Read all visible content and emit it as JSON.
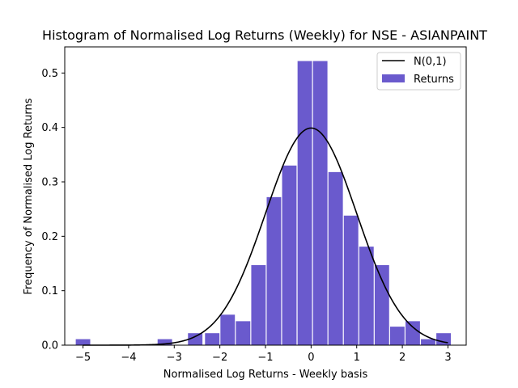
{
  "chart_data": {
    "type": "bar",
    "title": "Histogram of Normalised Log Returns (Weekly) for NSE - ASIANPAINT",
    "xlabel": "Normalised Log Returns - Weekly basis",
    "ylabel": "Frequency of Normalised Log Returns",
    "xlim": [
      -5.4,
      3.4
    ],
    "ylim": [
      0,
      0.548
    ],
    "xticks": [
      -5,
      -4,
      -3,
      -2,
      -1,
      0,
      1,
      2,
      3
    ],
    "xtick_labels": [
      "−5",
      "−4",
      "−3",
      "−2",
      "−1",
      "0",
      "1",
      "2",
      "3"
    ],
    "yticks": [
      0.0,
      0.1,
      0.2,
      0.3,
      0.4,
      0.5
    ],
    "ytick_labels": [
      "0.0",
      "0.1",
      "0.2",
      "0.3",
      "0.4",
      "0.5"
    ],
    "bin_width": 0.373,
    "bar_width_fraction": 0.85,
    "bins": [
      {
        "x": -5.0,
        "y": 0.011
      },
      {
        "x": -3.206,
        "y": 0.011
      },
      {
        "x": -2.54,
        "y": 0.022
      },
      {
        "x": -2.167,
        "y": 0.022
      },
      {
        "x": -1.829,
        "y": 0.056
      },
      {
        "x": -1.491,
        "y": 0.044
      },
      {
        "x": -1.153,
        "y": 0.147
      },
      {
        "x": -0.815,
        "y": 0.272
      },
      {
        "x": -0.477,
        "y": 0.33
      },
      {
        "x": -0.138,
        "y": 0.522
      },
      {
        "x": 0.2,
        "y": 0.522
      },
      {
        "x": 0.538,
        "y": 0.318
      },
      {
        "x": 0.876,
        "y": 0.238
      },
      {
        "x": 1.214,
        "y": 0.181
      },
      {
        "x": 1.552,
        "y": 0.147
      },
      {
        "x": 1.89,
        "y": 0.034
      },
      {
        "x": 2.228,
        "y": 0.044
      },
      {
        "x": 2.566,
        "y": 0.011
      },
      {
        "x": 2.904,
        "y": 0.022
      }
    ],
    "curve": {
      "name": "N(0,1)",
      "mean": 0,
      "sd": 1,
      "x_range": [
        -5,
        3
      ],
      "color": "#000000"
    },
    "bar_series_name": "Returns",
    "bar_color": "#6a5acd",
    "legend_position": "top-right",
    "grid": false
  }
}
